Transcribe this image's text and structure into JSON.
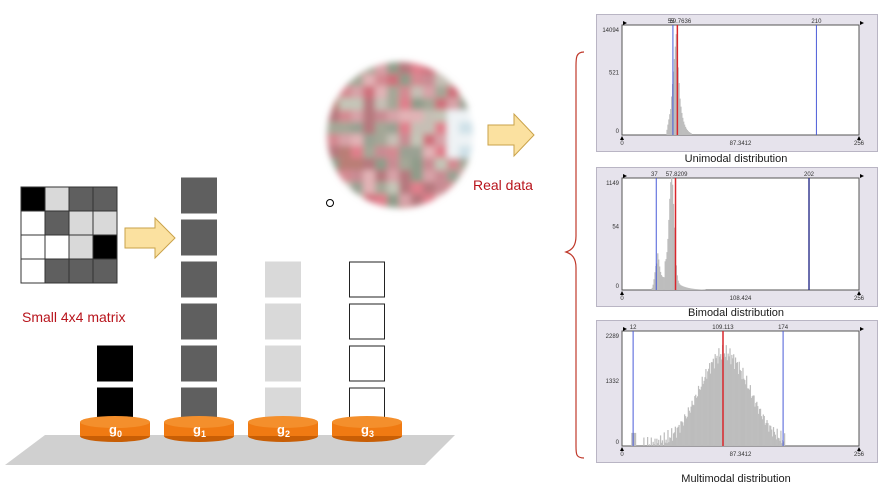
{
  "left_panel": {
    "matrix_caption": "Small 4x4 matrix",
    "matrix": [
      [
        "#000000",
        "#d9d9d9",
        "#5f5f5f",
        "#5f5f5f"
      ],
      [
        "#ffffff",
        "#5f5f5f",
        "#d9d9d9",
        "#d9d9d9"
      ],
      [
        "#ffffff",
        "#ffffff",
        "#d9d9d9",
        "#000000"
      ],
      [
        "#ffffff",
        "#5f5f5f",
        "#5f5f5f",
        "#5f5f5f"
      ]
    ],
    "groups": [
      {
        "label": "g",
        "subscript": "0",
        "color": "#000000",
        "count": 2
      },
      {
        "label": "g",
        "subscript": "1",
        "color": "#5f5f5f",
        "count": 6
      },
      {
        "label": "g",
        "subscript": "2",
        "color": "#d9d9d9",
        "count": 4
      },
      {
        "label": "g",
        "subscript": "3",
        "color": "#ffffff",
        "count": 4
      }
    ],
    "colors": {
      "disc": "#f07a12",
      "disc_dark": "#c85e05",
      "platform": "#d0d0d0",
      "arrow_fill": "#fbe1a0",
      "arrow_stroke": "#c9a24a"
    }
  },
  "middle_panel": {
    "real_data_label": "Real data"
  },
  "histograms": [
    {
      "name": "unimodal",
      "caption": "Unimodal distribution",
      "y_labels": [
        "14094",
        "521",
        "0"
      ],
      "top_labels": [
        "55",
        "59.7636",
        "210"
      ],
      "x_labels": [
        "0",
        "87.3412",
        "256"
      ]
    },
    {
      "name": "bimodal",
      "caption": "Bimodal distribution",
      "y_labels": [
        "1149",
        "54",
        "0"
      ],
      "top_labels": [
        "37",
        "57.8209",
        "202"
      ],
      "x_labels": [
        "0",
        "108.424",
        "256"
      ]
    },
    {
      "name": "multimodal",
      "caption": "Multimodal distribution",
      "y_labels": [
        "2289",
        "1332",
        "0"
      ],
      "top_labels": [
        "12",
        "109.113",
        "174"
      ],
      "x_labels": [
        "0",
        "87.3412",
        "256"
      ]
    }
  ],
  "chart_colors": {
    "bars": "#bdbdbd",
    "mean_line": "#d9262c",
    "threshold_line": "#4a5bd8",
    "threshold_dark": "#2a2f8a",
    "bracket": "#c0392b"
  }
}
